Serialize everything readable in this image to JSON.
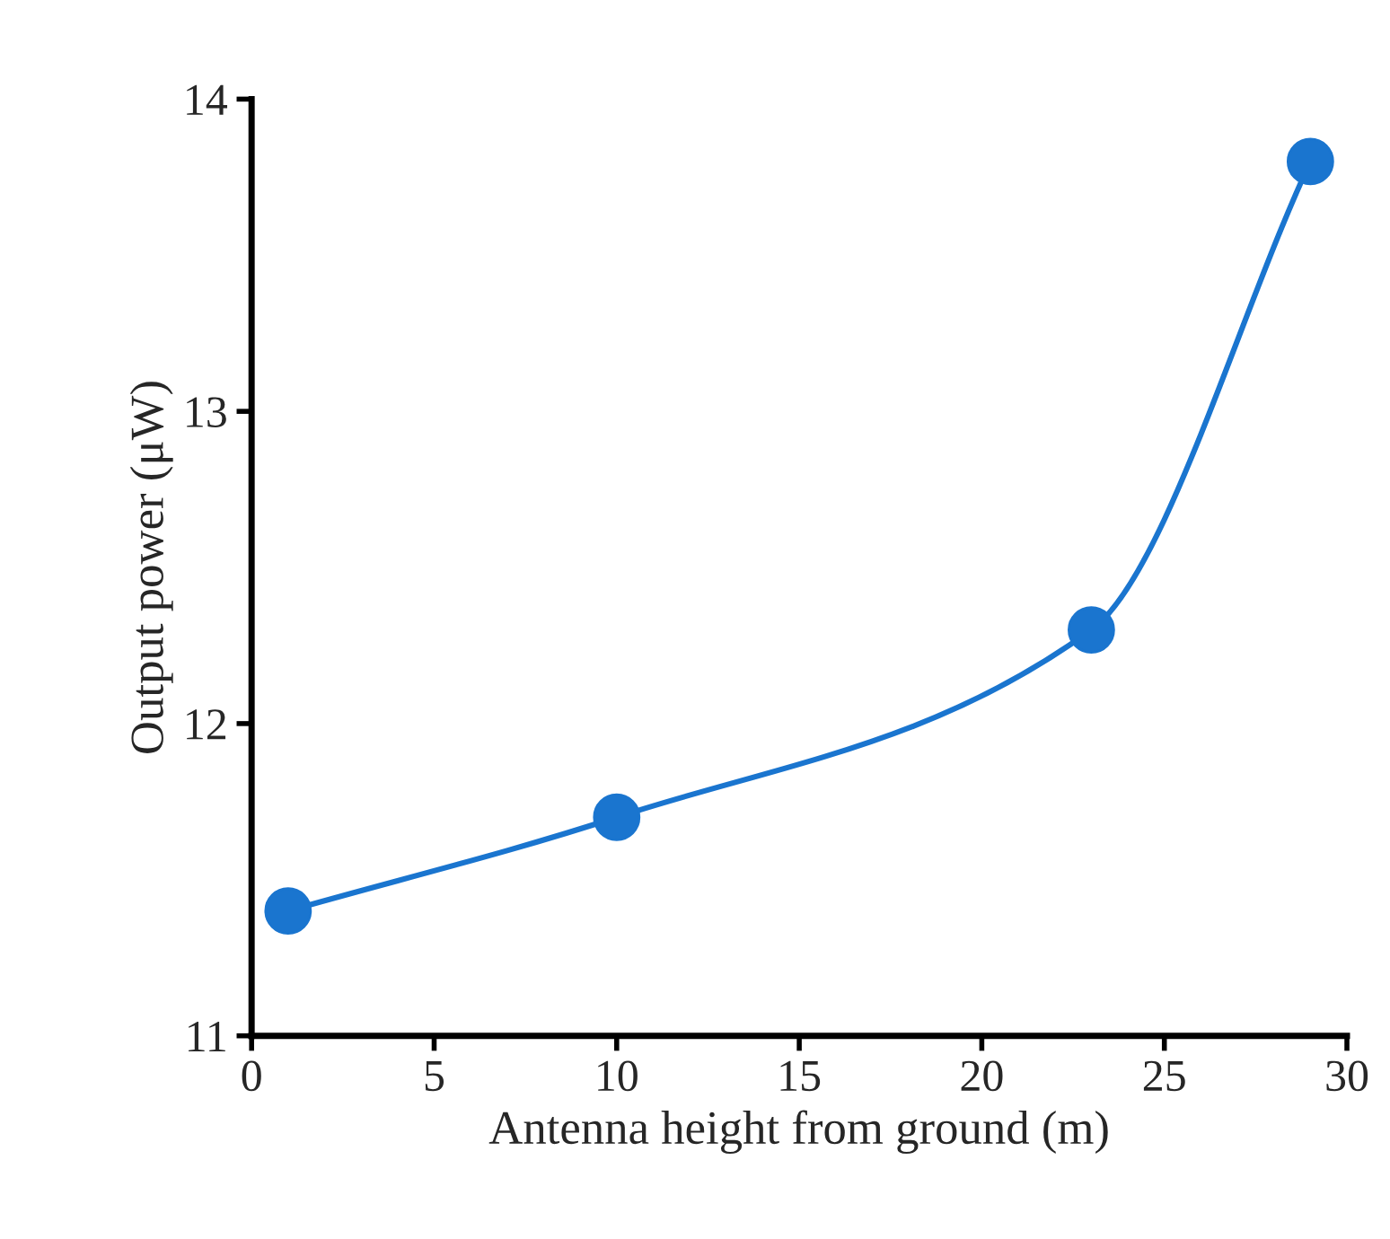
{
  "chart_data": {
    "type": "line",
    "xlabel": "Antenna height from ground (m)",
    "ylabel": "Output power (μW)",
    "x": [
      1,
      10,
      23,
      29
    ],
    "series": [
      {
        "color": "#1a75cf",
        "values": [
          11.4,
          11.7,
          12.3,
          13.8
        ]
      }
    ],
    "xlim": [
      0,
      30
    ],
    "xticks": [
      0,
      5,
      10,
      15,
      20,
      25,
      30
    ],
    "ylim": [
      11,
      14
    ],
    "yticks": [
      11,
      12,
      13,
      14
    ],
    "grid": false,
    "marker": "circle",
    "line_style": "solid"
  }
}
